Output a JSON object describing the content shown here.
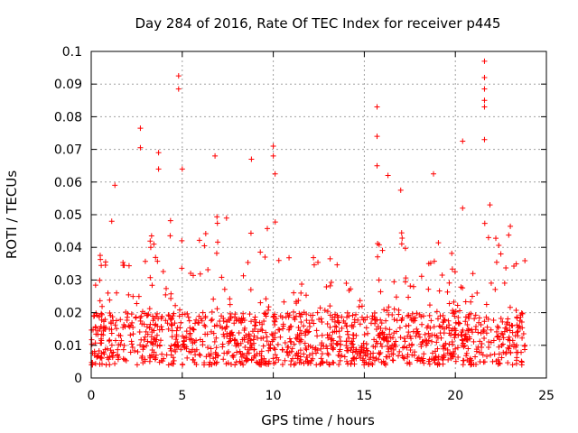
{
  "chart_data": {
    "type": "scatter",
    "title": "Day 284 of 2016, Rate Of TEC Index for receiver p445",
    "xlabel": "GPS time / hours",
    "ylabel": "ROTI / TECUs",
    "xlim": [
      0,
      25
    ],
    "ylim": [
      0,
      0.1
    ],
    "xticks": [
      "0",
      "5",
      "10",
      "15",
      "20",
      "25"
    ],
    "xtick_values": [
      0,
      5,
      10,
      15,
      20,
      25
    ],
    "yticks": [
      "0",
      "0.01",
      "0.02",
      "0.03",
      "0.04",
      "0.05",
      "0.06",
      "0.07",
      "0.08",
      "0.09",
      "0.1"
    ],
    "ytick_values": [
      0,
      0.01,
      0.02,
      0.03,
      0.04,
      0.05,
      0.06,
      0.07,
      0.08,
      0.09,
      0.1
    ],
    "grid": true,
    "marker": "+",
    "color": "#ff0000",
    "data_x_range": [
      0,
      23.9
    ],
    "notable_points": [
      {
        "x": 2.7,
        "y": 0.0765
      },
      {
        "x": 2.7,
        "y": 0.0705
      },
      {
        "x": 3.7,
        "y": 0.069
      },
      {
        "x": 3.7,
        "y": 0.064
      },
      {
        "x": 4.8,
        "y": 0.0925
      },
      {
        "x": 4.8,
        "y": 0.0885
      },
      {
        "x": 5.0,
        "y": 0.064
      },
      {
        "x": 6.8,
        "y": 0.068
      },
      {
        "x": 8.8,
        "y": 0.067
      },
      {
        "x": 10.0,
        "y": 0.071
      },
      {
        "x": 10.0,
        "y": 0.068
      },
      {
        "x": 10.1,
        "y": 0.0625
      },
      {
        "x": 15.7,
        "y": 0.083
      },
      {
        "x": 15.7,
        "y": 0.074
      },
      {
        "x": 15.7,
        "y": 0.065
      },
      {
        "x": 18.8,
        "y": 0.0625
      },
      {
        "x": 20.4,
        "y": 0.0725
      },
      {
        "x": 21.6,
        "y": 0.097
      },
      {
        "x": 21.6,
        "y": 0.092
      },
      {
        "x": 21.6,
        "y": 0.0885
      },
      {
        "x": 21.6,
        "y": 0.085
      },
      {
        "x": 21.6,
        "y": 0.083
      },
      {
        "x": 21.6,
        "y": 0.073
      },
      {
        "x": 1.3,
        "y": 0.059
      },
      {
        "x": 16.3,
        "y": 0.062
      },
      {
        "x": 17.0,
        "y": 0.0575
      },
      {
        "x": 21.9,
        "y": 0.053
      },
      {
        "x": 20.4,
        "y": 0.052
      }
    ],
    "burst_envelope": [
      {
        "x": 0.2,
        "y_max": 0.03
      },
      {
        "x": 0.6,
        "y_max": 0.045
      },
      {
        "x": 1.3,
        "y_max": 0.055
      },
      {
        "x": 2.0,
        "y_max": 0.04
      },
      {
        "x": 2.7,
        "y_max": 0.055
      },
      {
        "x": 3.3,
        "y_max": 0.045
      },
      {
        "x": 3.7,
        "y_max": 0.055
      },
      {
        "x": 4.4,
        "y_max": 0.05
      },
      {
        "x": 4.9,
        "y_max": 0.06
      },
      {
        "x": 5.5,
        "y_max": 0.035
      },
      {
        "x": 6.2,
        "y_max": 0.05
      },
      {
        "x": 6.8,
        "y_max": 0.058
      },
      {
        "x": 7.5,
        "y_max": 0.05
      },
      {
        "x": 8.2,
        "y_max": 0.045
      },
      {
        "x": 8.8,
        "y_max": 0.055
      },
      {
        "x": 9.4,
        "y_max": 0.04
      },
      {
        "x": 10.0,
        "y_max": 0.06
      },
      {
        "x": 10.6,
        "y_max": 0.05
      },
      {
        "x": 11.4,
        "y_max": 0.035
      },
      {
        "x": 12.3,
        "y_max": 0.045
      },
      {
        "x": 13.2,
        "y_max": 0.045
      },
      {
        "x": 14.0,
        "y_max": 0.035
      },
      {
        "x": 14.8,
        "y_max": 0.035
      },
      {
        "x": 15.7,
        "y_max": 0.05
      },
      {
        "x": 16.4,
        "y_max": 0.045
      },
      {
        "x": 17.1,
        "y_max": 0.055
      },
      {
        "x": 17.8,
        "y_max": 0.04
      },
      {
        "x": 18.6,
        "y_max": 0.055
      },
      {
        "x": 19.2,
        "y_max": 0.045
      },
      {
        "x": 19.8,
        "y_max": 0.04
      },
      {
        "x": 20.4,
        "y_max": 0.05
      },
      {
        "x": 21.0,
        "y_max": 0.04
      },
      {
        "x": 21.7,
        "y_max": 0.05
      },
      {
        "x": 22.3,
        "y_max": 0.045
      },
      {
        "x": 22.9,
        "y_max": 0.05
      },
      {
        "x": 23.5,
        "y_max": 0.045
      }
    ],
    "base_band": [
      0.004,
      0.02
    ],
    "n_background_points": 1400
  }
}
